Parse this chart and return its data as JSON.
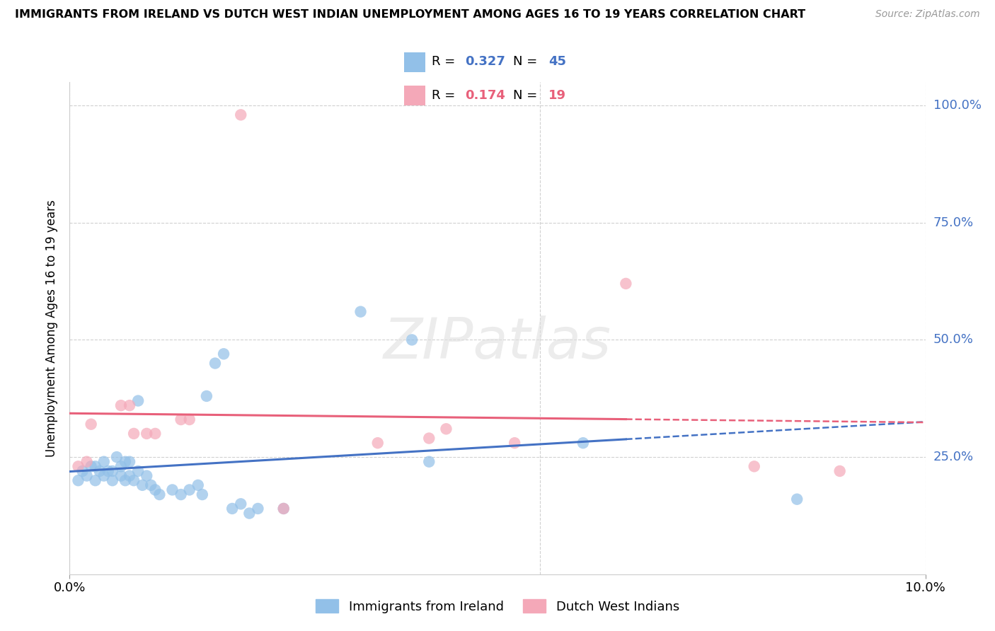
{
  "title": "IMMIGRANTS FROM IRELAND VS DUTCH WEST INDIAN UNEMPLOYMENT AMONG AGES 16 TO 19 YEARS CORRELATION CHART",
  "source": "Source: ZipAtlas.com",
  "ylabel": "Unemployment Among Ages 16 to 19 years",
  "legend_label1": "Immigrants from Ireland",
  "legend_label2": "Dutch West Indians",
  "R1": 0.327,
  "N1": 45,
  "R2": 0.174,
  "N2": 19,
  "color_blue": "#92C0E8",
  "color_pink": "#F4A8B8",
  "line_blue": "#4472C4",
  "line_pink": "#E8607A",
  "watermark": "ZIPatlas",
  "blue_points": [
    [
      0.1,
      0.2
    ],
    [
      0.15,
      0.22
    ],
    [
      0.2,
      0.21
    ],
    [
      0.25,
      0.23
    ],
    [
      0.3,
      0.2
    ],
    [
      0.3,
      0.23
    ],
    [
      0.35,
      0.22
    ],
    [
      0.4,
      0.21
    ],
    [
      0.4,
      0.24
    ],
    [
      0.45,
      0.22
    ],
    [
      0.5,
      0.2
    ],
    [
      0.5,
      0.22
    ],
    [
      0.55,
      0.25
    ],
    [
      0.6,
      0.21
    ],
    [
      0.6,
      0.23
    ],
    [
      0.65,
      0.24
    ],
    [
      0.65,
      0.2
    ],
    [
      0.7,
      0.24
    ],
    [
      0.7,
      0.21
    ],
    [
      0.75,
      0.2
    ],
    [
      0.8,
      0.37
    ],
    [
      0.8,
      0.22
    ],
    [
      0.85,
      0.19
    ],
    [
      0.9,
      0.21
    ],
    [
      0.95,
      0.19
    ],
    [
      1.0,
      0.18
    ],
    [
      1.05,
      0.17
    ],
    [
      1.2,
      0.18
    ],
    [
      1.3,
      0.17
    ],
    [
      1.4,
      0.18
    ],
    [
      1.5,
      0.19
    ],
    [
      1.55,
      0.17
    ],
    [
      1.6,
      0.38
    ],
    [
      1.7,
      0.45
    ],
    [
      1.8,
      0.47
    ],
    [
      1.9,
      0.14
    ],
    [
      2.0,
      0.15
    ],
    [
      2.1,
      0.13
    ],
    [
      2.2,
      0.14
    ],
    [
      2.5,
      0.14
    ],
    [
      3.4,
      0.56
    ],
    [
      4.0,
      0.5
    ],
    [
      4.2,
      0.24
    ],
    [
      6.0,
      0.28
    ],
    [
      8.5,
      0.16
    ]
  ],
  "pink_points": [
    [
      0.1,
      0.23
    ],
    [
      0.2,
      0.24
    ],
    [
      0.25,
      0.32
    ],
    [
      0.6,
      0.36
    ],
    [
      0.7,
      0.36
    ],
    [
      0.75,
      0.3
    ],
    [
      0.9,
      0.3
    ],
    [
      1.0,
      0.3
    ],
    [
      1.3,
      0.33
    ],
    [
      1.4,
      0.33
    ],
    [
      2.5,
      0.14
    ],
    [
      3.6,
      0.28
    ],
    [
      4.2,
      0.29
    ],
    [
      4.4,
      0.31
    ],
    [
      2.0,
      0.98
    ],
    [
      5.2,
      0.28
    ],
    [
      6.5,
      0.62
    ],
    [
      8.0,
      0.23
    ],
    [
      9.0,
      0.22
    ]
  ]
}
